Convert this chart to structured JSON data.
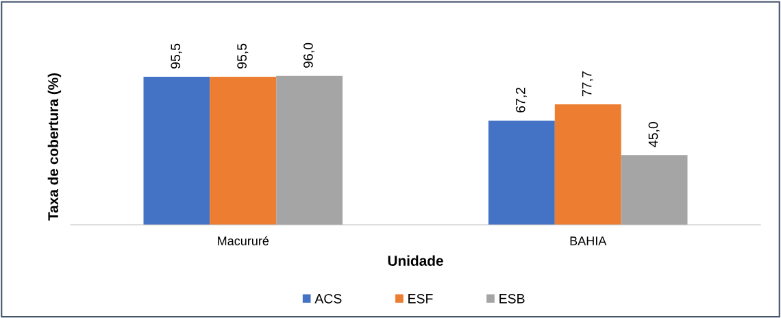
{
  "chart_data": {
    "type": "bar",
    "xlabel": "Unidade",
    "ylabel": "Taxa de cobertura (%)",
    "categories": [
      "Macururé",
      "BAHIA"
    ],
    "series": [
      {
        "name": "ACS",
        "color": "#4472c4",
        "values": [
          95.5,
          67.2
        ],
        "value_labels": [
          "95,5",
          "67,2"
        ]
      },
      {
        "name": "ESF",
        "color": "#ed7d31",
        "values": [
          95.5,
          77.7
        ],
        "value_labels": [
          "95,5",
          "77,7"
        ]
      },
      {
        "name": "ESB",
        "color": "#a5a5a5",
        "values": [
          96.0,
          45.0
        ],
        "value_labels": [
          "96,0",
          "45,0"
        ]
      }
    ],
    "tick_labels": "x",
    "grid": false,
    "legend": "bottom"
  }
}
